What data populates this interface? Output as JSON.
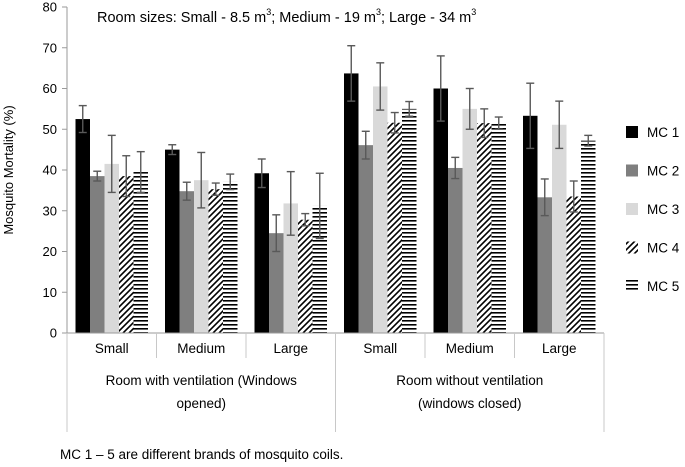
{
  "chart_data": {
    "type": "bar",
    "note_html": "Room sizes: Small - 8.5 m",
    "room_note": {
      "parts": [
        "Room sizes: Small - 8.5 m",
        "3",
        "; Medium - 19 m",
        "3",
        "; Large - 34 m",
        "3"
      ]
    },
    "ylabel": "Mosquito Mortality (%)",
    "ylim": [
      0,
      80
    ],
    "yticks": [
      0,
      10,
      20,
      30,
      40,
      50,
      60,
      70,
      80
    ],
    "grid": false,
    "legend_position": "right",
    "groups": [
      {
        "label": "Room with ventilation (Windows opened)",
        "label_lines": [
          "Room with ventilation (Windows",
          "opened)"
        ]
      },
      {
        "label": "Room without ventilation (windows closed)",
        "label_lines": [
          "Room without ventilation",
          "(windows closed)"
        ]
      }
    ],
    "categories": [
      "Small",
      "Medium",
      "Large",
      "Small",
      "Medium",
      "Large"
    ],
    "series": [
      {
        "name": "MC 1",
        "pattern": "solid-black",
        "values": [
          52.5,
          45,
          39.2,
          63.7,
          60,
          53.3
        ],
        "errors": [
          3.3,
          1.2,
          3.5,
          6.8,
          8,
          8
        ]
      },
      {
        "name": "MC 2",
        "pattern": "solid-gray",
        "values": [
          38.5,
          34.8,
          24.5,
          46.1,
          40.5,
          33.3
        ],
        "errors": [
          1.2,
          2.2,
          4.5,
          3.4,
          2.6,
          4.5
        ]
      },
      {
        "name": "MC 3",
        "pattern": "light-gray",
        "values": [
          41.5,
          37.5,
          31.8,
          60.5,
          55,
          51.1
        ],
        "errors": [
          7,
          6.8,
          7.8,
          5.8,
          5,
          5.8
        ]
      },
      {
        "name": "MC 4",
        "pattern": "diagonal-hatch",
        "values": [
          38.5,
          35.3,
          27.8,
          51.6,
          51.5,
          33.5
        ],
        "errors": [
          5,
          1.5,
          1.5,
          2.5,
          3.5,
          3.8
        ]
      },
      {
        "name": "MC 5",
        "pattern": "horizontal-lines",
        "values": [
          39.5,
          37.1,
          31.2,
          55,
          51.5,
          47.2
        ],
        "errors": [
          5,
          1.9,
          8,
          1.8,
          1.5,
          1.3
        ]
      }
    ],
    "footnote": "MC 1 – 5 are different brands of mosquito coils."
  }
}
